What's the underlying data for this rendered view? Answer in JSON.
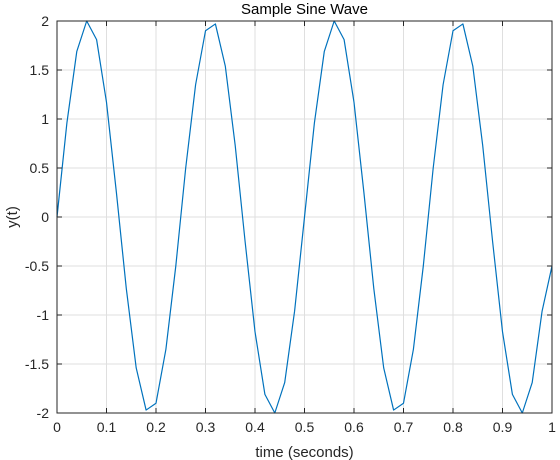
{
  "chart_data": {
    "type": "line",
    "title": "Sample Sine Wave",
    "xlabel": "time (seconds)",
    "ylabel": "y(t)",
    "xlim": [
      0,
      1
    ],
    "ylim": [
      -2,
      2
    ],
    "grid": true,
    "legend": "none",
    "x_ticks": [
      0,
      0.1,
      0.2,
      0.3,
      0.4,
      0.5,
      0.6,
      0.7,
      0.8,
      0.9,
      1
    ],
    "x_tick_labels": [
      "0",
      "0.1",
      "0.2",
      "0.3",
      "0.4",
      "0.5",
      "0.6",
      "0.7",
      "0.8",
      "0.9",
      "1"
    ],
    "y_ticks": [
      2,
      1.5,
      1,
      0.5,
      0,
      -0.5,
      -1,
      -1.5,
      -2
    ],
    "y_tick_labels": [
      "2",
      "1.5",
      "1",
      "0.5",
      "0",
      "-0.5",
      "-1",
      "-1.5",
      "-2"
    ],
    "series": [
      {
        "color": "#0072bd",
        "x": [
          0,
          0.02,
          0.04,
          0.06,
          0.08,
          0.1,
          0.12,
          0.14,
          0.16,
          0.18,
          0.2,
          0.22,
          0.24,
          0.26,
          0.28,
          0.3,
          0.32,
          0.34,
          0.36,
          0.38,
          0.4,
          0.42,
          0.44,
          0.46,
          0.48,
          0.5,
          0.52,
          0.54,
          0.56,
          0.58,
          0.6,
          0.62,
          0.64,
          0.66,
          0.68,
          0.7,
          0.72,
          0.74,
          0.76,
          0.78,
          0.8,
          0.82,
          0.84,
          0.86,
          0.88,
          0.9,
          0.92,
          0.94,
          0.96,
          0.98,
          1.0
        ],
        "y": [
          0,
          0.96,
          1.69,
          2.0,
          1.81,
          1.17,
          0.25,
          -0.73,
          -1.54,
          -1.97,
          -1.9,
          -1.35,
          -0.5,
          0.5,
          1.35,
          1.9,
          1.97,
          1.54,
          0.73,
          -0.25,
          -1.17,
          -1.81,
          -2.0,
          -1.69,
          -0.96,
          0,
          0.96,
          1.69,
          2.0,
          1.81,
          1.17,
          0.25,
          -0.73,
          -1.54,
          -1.97,
          -1.9,
          -1.35,
          -0.5,
          0.5,
          1.35,
          1.9,
          1.97,
          1.54,
          0.73,
          -0.25,
          -1.17,
          -1.81,
          -2.0,
          -1.69,
          -0.96,
          -0.5
        ]
      }
    ]
  }
}
